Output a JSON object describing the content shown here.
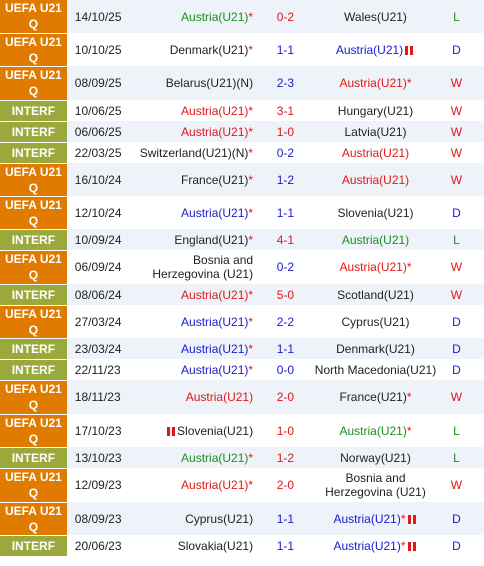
{
  "rows": [
    {
      "comp": "UEFA U21 Q",
      "date": "14/10/25",
      "home": "Austria(U21)",
      "home_star": "*",
      "home_flag": false,
      "home_color": "green",
      "score": "0-2",
      "score_color": "red",
      "away": "Wales(U21)",
      "away_star": "",
      "away_flag": false,
      "away_color": "",
      "result": "L",
      "result_color": "green",
      "dash": ""
    },
    {
      "comp": "UEFA U21 Q",
      "date": "10/10/25",
      "home": "Denmark(U21)",
      "home_star": "*",
      "home_flag": false,
      "home_color": "",
      "score": "1-1",
      "score_color": "blue",
      "away": "Austria(U21)",
      "away_star": "",
      "away_flag": true,
      "away_color": "blue",
      "result": "D",
      "result_color": "blue",
      "dash": ""
    },
    {
      "comp": "UEFA U21 Q",
      "date": "08/09/25",
      "home": "Belarus(U21)(N)",
      "home_star": "",
      "home_flag": false,
      "home_color": "",
      "score": "2-3",
      "score_color": "blue",
      "away": "Austria(U21)",
      "away_star": "*",
      "away_flag": false,
      "away_color": "red",
      "result": "W",
      "result_color": "red",
      "dash": "-"
    },
    {
      "comp": "INTERF",
      "date": "10/06/25",
      "home": "Austria(U21)",
      "home_star": "*",
      "home_flag": false,
      "home_color": "red",
      "score": "3-1",
      "score_color": "red",
      "away": "Hungary(U21)",
      "away_star": "",
      "away_flag": false,
      "away_color": "",
      "result": "W",
      "result_color": "red",
      "dash": "-"
    },
    {
      "comp": "INTERF",
      "date": "06/06/25",
      "home": "Austria(U21)",
      "home_star": "*",
      "home_flag": false,
      "home_color": "red",
      "score": "1-0",
      "score_color": "red",
      "away": "Latvia(U21)",
      "away_star": "",
      "away_flag": false,
      "away_color": "",
      "result": "W",
      "result_color": "red",
      "dash": "-"
    },
    {
      "comp": "INTERF",
      "date": "22/03/25",
      "home": "Switzerland(U21)(N)",
      "home_star": "*",
      "home_flag": false,
      "home_color": "",
      "score": "0-2",
      "score_color": "blue",
      "away": "Austria(U21)",
      "away_star": "",
      "away_flag": false,
      "away_color": "red",
      "result": "W",
      "result_color": "red",
      "dash": "-"
    },
    {
      "comp": "UEFA U21 Q",
      "date": "16/10/24",
      "home": "France(U21)",
      "home_star": "*",
      "home_flag": false,
      "home_color": "",
      "score": "1-2",
      "score_color": "blue",
      "away": "Austria(U21)",
      "away_star": "",
      "away_flag": false,
      "away_color": "red",
      "result": "W",
      "result_color": "red",
      "dash": "-"
    },
    {
      "comp": "UEFA U21 Q",
      "date": "12/10/24",
      "home": "Austria(U21)",
      "home_star": "*",
      "home_flag": false,
      "home_color": "blue",
      "score": "1-1",
      "score_color": "blue",
      "away": "Slovenia(U21)",
      "away_star": "",
      "away_flag": false,
      "away_color": "",
      "result": "D",
      "result_color": "blue",
      "dash": ""
    },
    {
      "comp": "INTERF",
      "date": "10/09/24",
      "home": "England(U21)",
      "home_star": "*",
      "home_flag": false,
      "home_color": "",
      "score": "4-1",
      "score_color": "red",
      "away": "Austria(U21)",
      "away_star": "",
      "away_flag": false,
      "away_color": "green",
      "result": "L",
      "result_color": "green",
      "dash": ""
    },
    {
      "comp": "UEFA U21 Q",
      "date": "06/09/24",
      "home": "Bosnia and Herzegovina (U21)",
      "home_star": "",
      "home_flag": false,
      "home_color": "",
      "score": "0-2",
      "score_color": "blue",
      "away": "Austria(U21)",
      "away_star": "*",
      "away_flag": false,
      "away_color": "red",
      "result": "W",
      "result_color": "red",
      "dash": "-"
    },
    {
      "comp": "INTERF",
      "date": "08/06/24",
      "home": "Austria(U21)",
      "home_star": "*",
      "home_flag": false,
      "home_color": "red",
      "score": "5-0",
      "score_color": "red",
      "away": "Scotland(U21)",
      "away_star": "",
      "away_flag": false,
      "away_color": "",
      "result": "W",
      "result_color": "red",
      "dash": "-"
    },
    {
      "comp": "UEFA U21 Q",
      "date": "27/03/24",
      "home": "Austria(U21)",
      "home_star": "*",
      "home_flag": false,
      "home_color": "blue",
      "score": "2-2",
      "score_color": "blue",
      "away": "Cyprus(U21)",
      "away_star": "",
      "away_flag": false,
      "away_color": "",
      "result": "D",
      "result_color": "blue",
      "dash": "-"
    },
    {
      "comp": "INTERF",
      "date": "23/03/24",
      "home": "Austria(U21)",
      "home_star": "*",
      "home_flag": false,
      "home_color": "blue",
      "score": "1-1",
      "score_color": "blue",
      "away": "Denmark(U21)",
      "away_star": "",
      "away_flag": false,
      "away_color": "",
      "result": "D",
      "result_color": "blue",
      "dash": ""
    },
    {
      "comp": "INTERF",
      "date": "22/11/23",
      "home": "Austria(U21)",
      "home_star": "*",
      "home_flag": false,
      "home_color": "blue",
      "score": "0-0",
      "score_color": "blue",
      "away": "North Macedonia(U21)",
      "away_star": "",
      "away_flag": false,
      "away_color": "",
      "result": "D",
      "result_color": "blue",
      "dash": "-"
    },
    {
      "comp": "UEFA U21 Q",
      "date": "18/11/23",
      "home": "Austria(U21)",
      "home_star": "",
      "home_flag": false,
      "home_color": "red",
      "score": "2-0",
      "score_color": "red",
      "away": "France(U21)",
      "away_star": "*",
      "away_flag": false,
      "away_color": "",
      "result": "W",
      "result_color": "red",
      "dash": "+"
    },
    {
      "comp": "UEFA U21 Q",
      "date": "17/10/23",
      "home": "Slovenia(U21)",
      "home_star": "",
      "home_flag": true,
      "home_color": "",
      "score": "1-0",
      "score_color": "red",
      "away": "Austria(U21)",
      "away_star": "*",
      "away_flag": false,
      "away_color": "green",
      "result": "L",
      "result_color": "green",
      "dash": ""
    },
    {
      "comp": "INTERF",
      "date": "13/10/23",
      "home": "Austria(U21)",
      "home_star": "*",
      "home_flag": false,
      "home_color": "green",
      "score": "1-2",
      "score_color": "red",
      "away": "Norway(U21)",
      "away_star": "",
      "away_flag": false,
      "away_color": "",
      "result": "L",
      "result_color": "green",
      "dash": ""
    },
    {
      "comp": "UEFA U21 Q",
      "date": "12/09/23",
      "home": "Austria(U21)",
      "home_star": "*",
      "home_flag": false,
      "home_color": "red",
      "score": "2-0",
      "score_color": "red",
      "away": "Bosnia and Herzegovina (U21)",
      "away_star": "",
      "away_flag": false,
      "away_color": "",
      "result": "W",
      "result_color": "red",
      "dash": ""
    },
    {
      "comp": "UEFA U21 Q",
      "date": "08/09/23",
      "home": "Cyprus(U21)",
      "home_star": "",
      "home_flag": false,
      "home_color": "",
      "score": "1-1",
      "score_color": "blue",
      "away": "Austria(U21)",
      "away_star": "*",
      "away_flag": true,
      "away_color": "blue",
      "result": "D",
      "result_color": "blue",
      "dash": ""
    },
    {
      "comp": "INTERF",
      "date": "20/06/23",
      "home": "Slovakia(U21)",
      "home_star": "",
      "home_flag": false,
      "home_color": "",
      "score": "1-1",
      "score_color": "blue",
      "away": "Austria(U21)",
      "away_star": "*",
      "away_flag": true,
      "away_color": "blue",
      "result": "D",
      "result_color": "blue",
      "dash": ""
    }
  ]
}
